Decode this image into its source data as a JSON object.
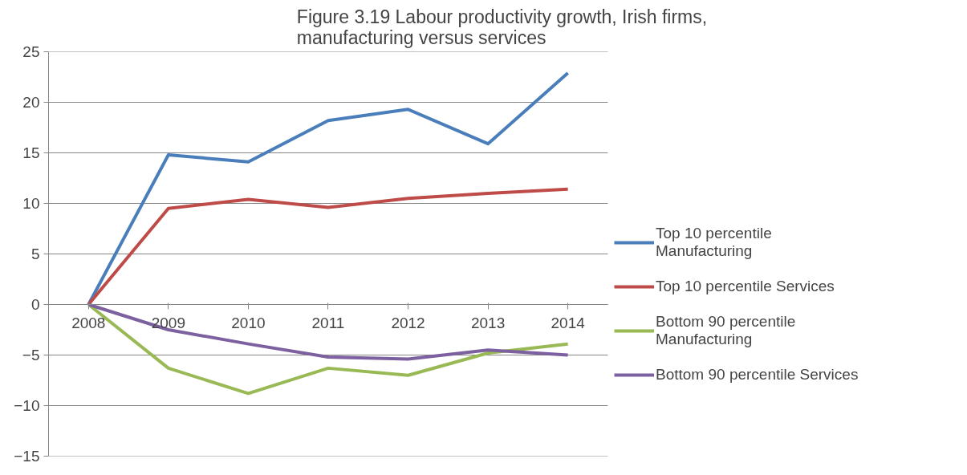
{
  "chart_data": {
    "type": "line",
    "title": "Figure 3.19 Labour productivity growth, Irish firms, manufacturing versus services",
    "categories": [
      "2008",
      "2009",
      "2010",
      "2011",
      "2012",
      "2013",
      "2014"
    ],
    "series": [
      {
        "name": "Top 10 percentile Manufacturing",
        "color": "#4a7ebb",
        "values": [
          0,
          14.8,
          14.1,
          18.2,
          19.3,
          15.9,
          22.9
        ]
      },
      {
        "name": "Top 10 percentile Services",
        "color": "#be4b48",
        "values": [
          0,
          9.5,
          10.4,
          9.6,
          10.5,
          11.0,
          11.4
        ]
      },
      {
        "name": "Bottom 90 percentile Manufacturing",
        "color": "#98b954",
        "values": [
          0,
          -6.3,
          -8.8,
          -6.3,
          -7.0,
          -4.8,
          -3.9
        ]
      },
      {
        "name": "Bottom 90 percentile Services",
        "color": "#7d60a0",
        "values": [
          0,
          -2.5,
          -3.9,
          -5.2,
          -5.4,
          -4.5,
          -5.0
        ]
      }
    ],
    "ylim": [
      -15,
      25
    ],
    "yticks": [
      -15,
      -10,
      -5,
      0,
      5,
      10,
      15,
      20,
      25
    ],
    "grid": "y",
    "legend": "right",
    "marker": "none",
    "line_style": "solid"
  }
}
